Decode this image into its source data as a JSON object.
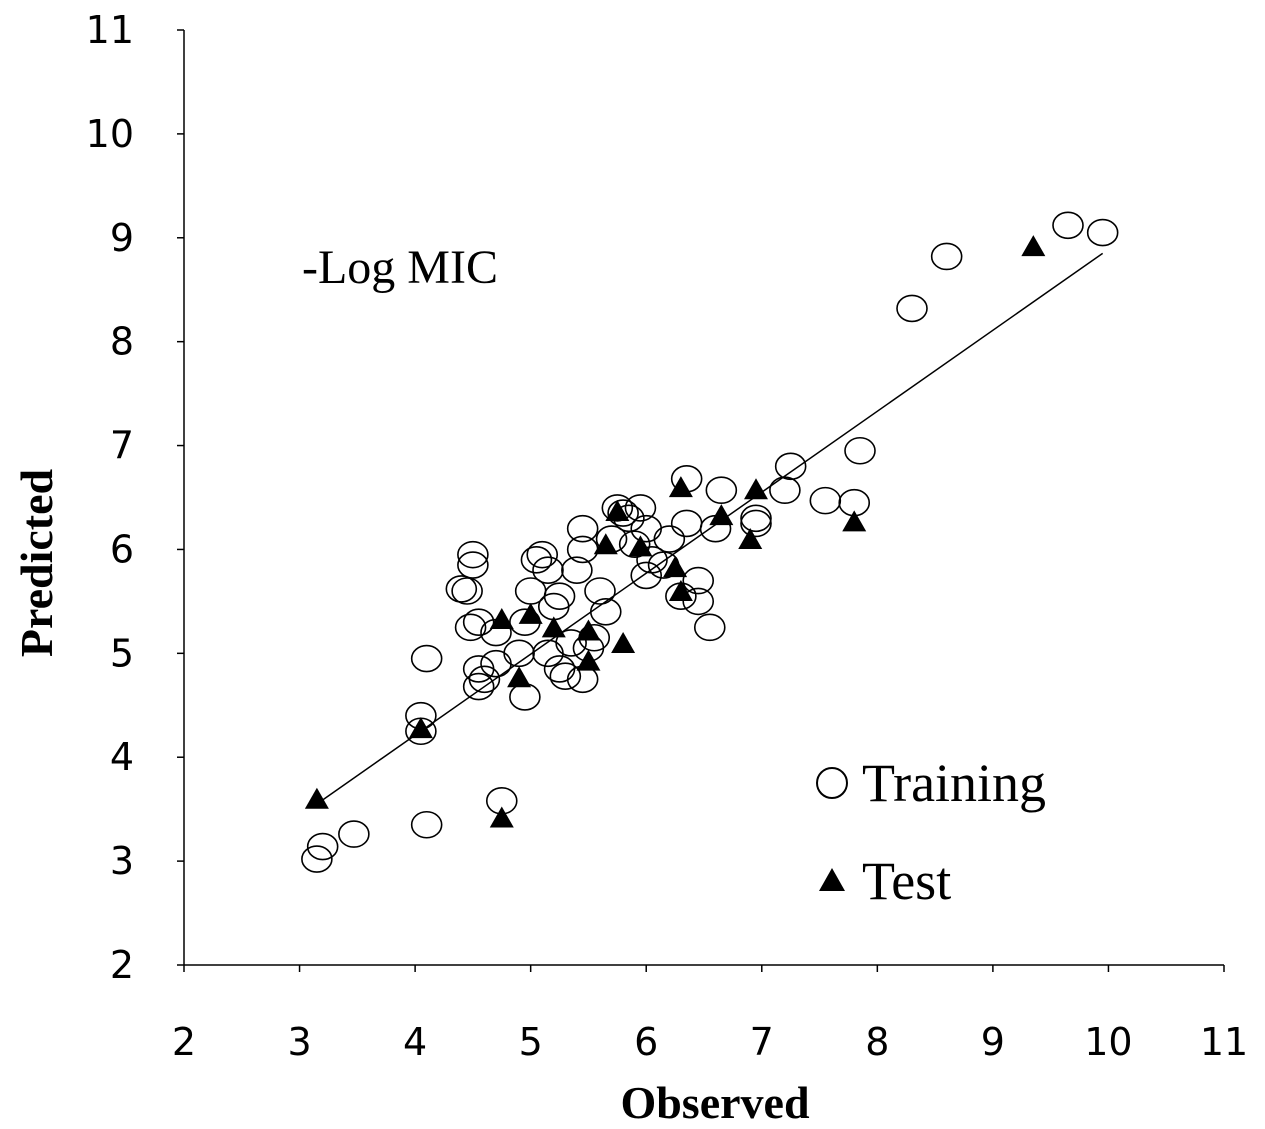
{
  "chart_data": {
    "type": "scatter",
    "title": "",
    "annotation": "-Log MIC",
    "xlabel": "Observed",
    "ylabel": "Predicted",
    "xlim": [
      2,
      11
    ],
    "ylim": [
      2,
      11
    ],
    "xticks": [
      2,
      3,
      4,
      5,
      6,
      7,
      8,
      9,
      10,
      11
    ],
    "yticks": [
      2,
      3,
      4,
      5,
      6,
      7,
      8,
      9,
      10,
      11
    ],
    "grid": false,
    "legend_position": "bottom-right",
    "series": [
      {
        "name": "Training",
        "marker": "open-circle",
        "points": [
          [
            3.15,
            3.02
          ],
          [
            3.2,
            3.14
          ],
          [
            3.47,
            3.26
          ],
          [
            4.05,
            4.4
          ],
          [
            4.05,
            4.25
          ],
          [
            4.1,
            4.95
          ],
          [
            4.1,
            3.35
          ],
          [
            4.75,
            3.58
          ],
          [
            4.4,
            5.62
          ],
          [
            4.45,
            5.6
          ],
          [
            4.5,
            5.95
          ],
          [
            4.5,
            5.85
          ],
          [
            4.48,
            5.25
          ],
          [
            4.55,
            5.3
          ],
          [
            4.55,
            4.85
          ],
          [
            4.6,
            4.75
          ],
          [
            4.55,
            4.68
          ],
          [
            4.7,
            4.9
          ],
          [
            4.7,
            5.2
          ],
          [
            4.9,
            5.0
          ],
          [
            4.95,
            4.58
          ],
          [
            4.95,
            5.3
          ],
          [
            5.0,
            5.6
          ],
          [
            5.05,
            5.9
          ],
          [
            5.1,
            5.95
          ],
          [
            5.15,
            5.8
          ],
          [
            5.15,
            5.0
          ],
          [
            5.2,
            5.45
          ],
          [
            5.25,
            5.55
          ],
          [
            5.25,
            4.85
          ],
          [
            5.3,
            4.78
          ],
          [
            5.35,
            5.1
          ],
          [
            5.4,
            5.8
          ],
          [
            5.45,
            6.2
          ],
          [
            5.45,
            6.0
          ],
          [
            5.45,
            4.75
          ],
          [
            5.5,
            5.05
          ],
          [
            5.55,
            5.15
          ],
          [
            5.6,
            5.6
          ],
          [
            5.65,
            5.4
          ],
          [
            5.7,
            6.1
          ],
          [
            5.75,
            6.4
          ],
          [
            5.8,
            6.35
          ],
          [
            5.85,
            6.3
          ],
          [
            5.9,
            6.05
          ],
          [
            5.95,
            6.4
          ],
          [
            6.0,
            5.75
          ],
          [
            6.0,
            6.2
          ],
          [
            6.05,
            5.9
          ],
          [
            6.15,
            5.85
          ],
          [
            6.2,
            6.1
          ],
          [
            6.3,
            5.55
          ],
          [
            6.35,
            6.25
          ],
          [
            6.35,
            6.68
          ],
          [
            6.45,
            5.7
          ],
          [
            6.45,
            5.5
          ],
          [
            6.55,
            5.25
          ],
          [
            6.6,
            6.2
          ],
          [
            6.65,
            6.57
          ],
          [
            6.95,
            6.3
          ],
          [
            6.95,
            6.25
          ],
          [
            7.2,
            6.57
          ],
          [
            7.25,
            6.8
          ],
          [
            7.55,
            6.47
          ],
          [
            7.8,
            6.45
          ],
          [
            7.85,
            6.95
          ],
          [
            8.3,
            8.32
          ],
          [
            8.6,
            8.82
          ],
          [
            9.65,
            9.12
          ],
          [
            9.95,
            9.05
          ]
        ]
      },
      {
        "name": "Test",
        "marker": "filled-triangle",
        "points": [
          [
            3.15,
            3.6
          ],
          [
            4.05,
            4.28
          ],
          [
            4.75,
            3.42
          ],
          [
            4.75,
            5.33
          ],
          [
            4.9,
            4.77
          ],
          [
            5.0,
            5.38
          ],
          [
            5.2,
            5.25
          ],
          [
            5.5,
            4.93
          ],
          [
            5.5,
            5.22
          ],
          [
            5.65,
            6.05
          ],
          [
            5.75,
            6.37
          ],
          [
            5.8,
            5.1
          ],
          [
            5.95,
            6.03
          ],
          [
            6.25,
            5.83
          ],
          [
            6.3,
            6.6
          ],
          [
            6.3,
            5.6
          ],
          [
            6.65,
            6.33
          ],
          [
            6.9,
            6.1
          ],
          [
            6.95,
            6.58
          ],
          [
            7.8,
            6.27
          ],
          [
            9.35,
            8.92
          ]
        ]
      }
    ],
    "trendline": {
      "type": "linear",
      "from": [
        3.15,
        3.55
      ],
      "to": [
        9.95,
        8.85
      ]
    }
  }
}
